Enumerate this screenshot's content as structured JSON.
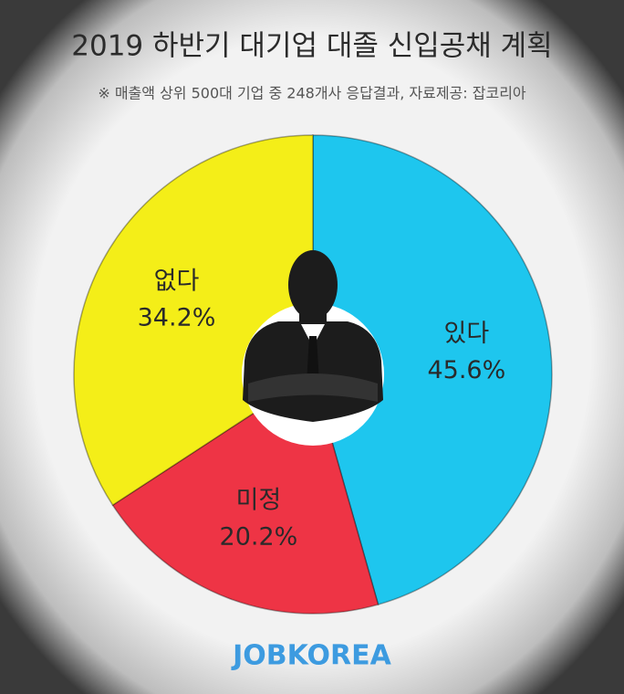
{
  "chart_data": {
    "type": "pie",
    "title": "2019 하반기 대기업 대졸 신입공채 계획",
    "subtitle": "※ 매출액 상위 500대 기업 중 248개사 응답결과, 자료제공: 잡코리아",
    "categories": [
      "있다",
      "미정",
      "없다"
    ],
    "values": [
      45.6,
      20.2,
      34.2
    ],
    "value_labels": [
      "45.6%",
      "20.2%",
      "34.2%"
    ],
    "colors": [
      "#1ec6ee",
      "#ee3445",
      "#f4ee18"
    ],
    "brand": "JOBKOREA"
  }
}
